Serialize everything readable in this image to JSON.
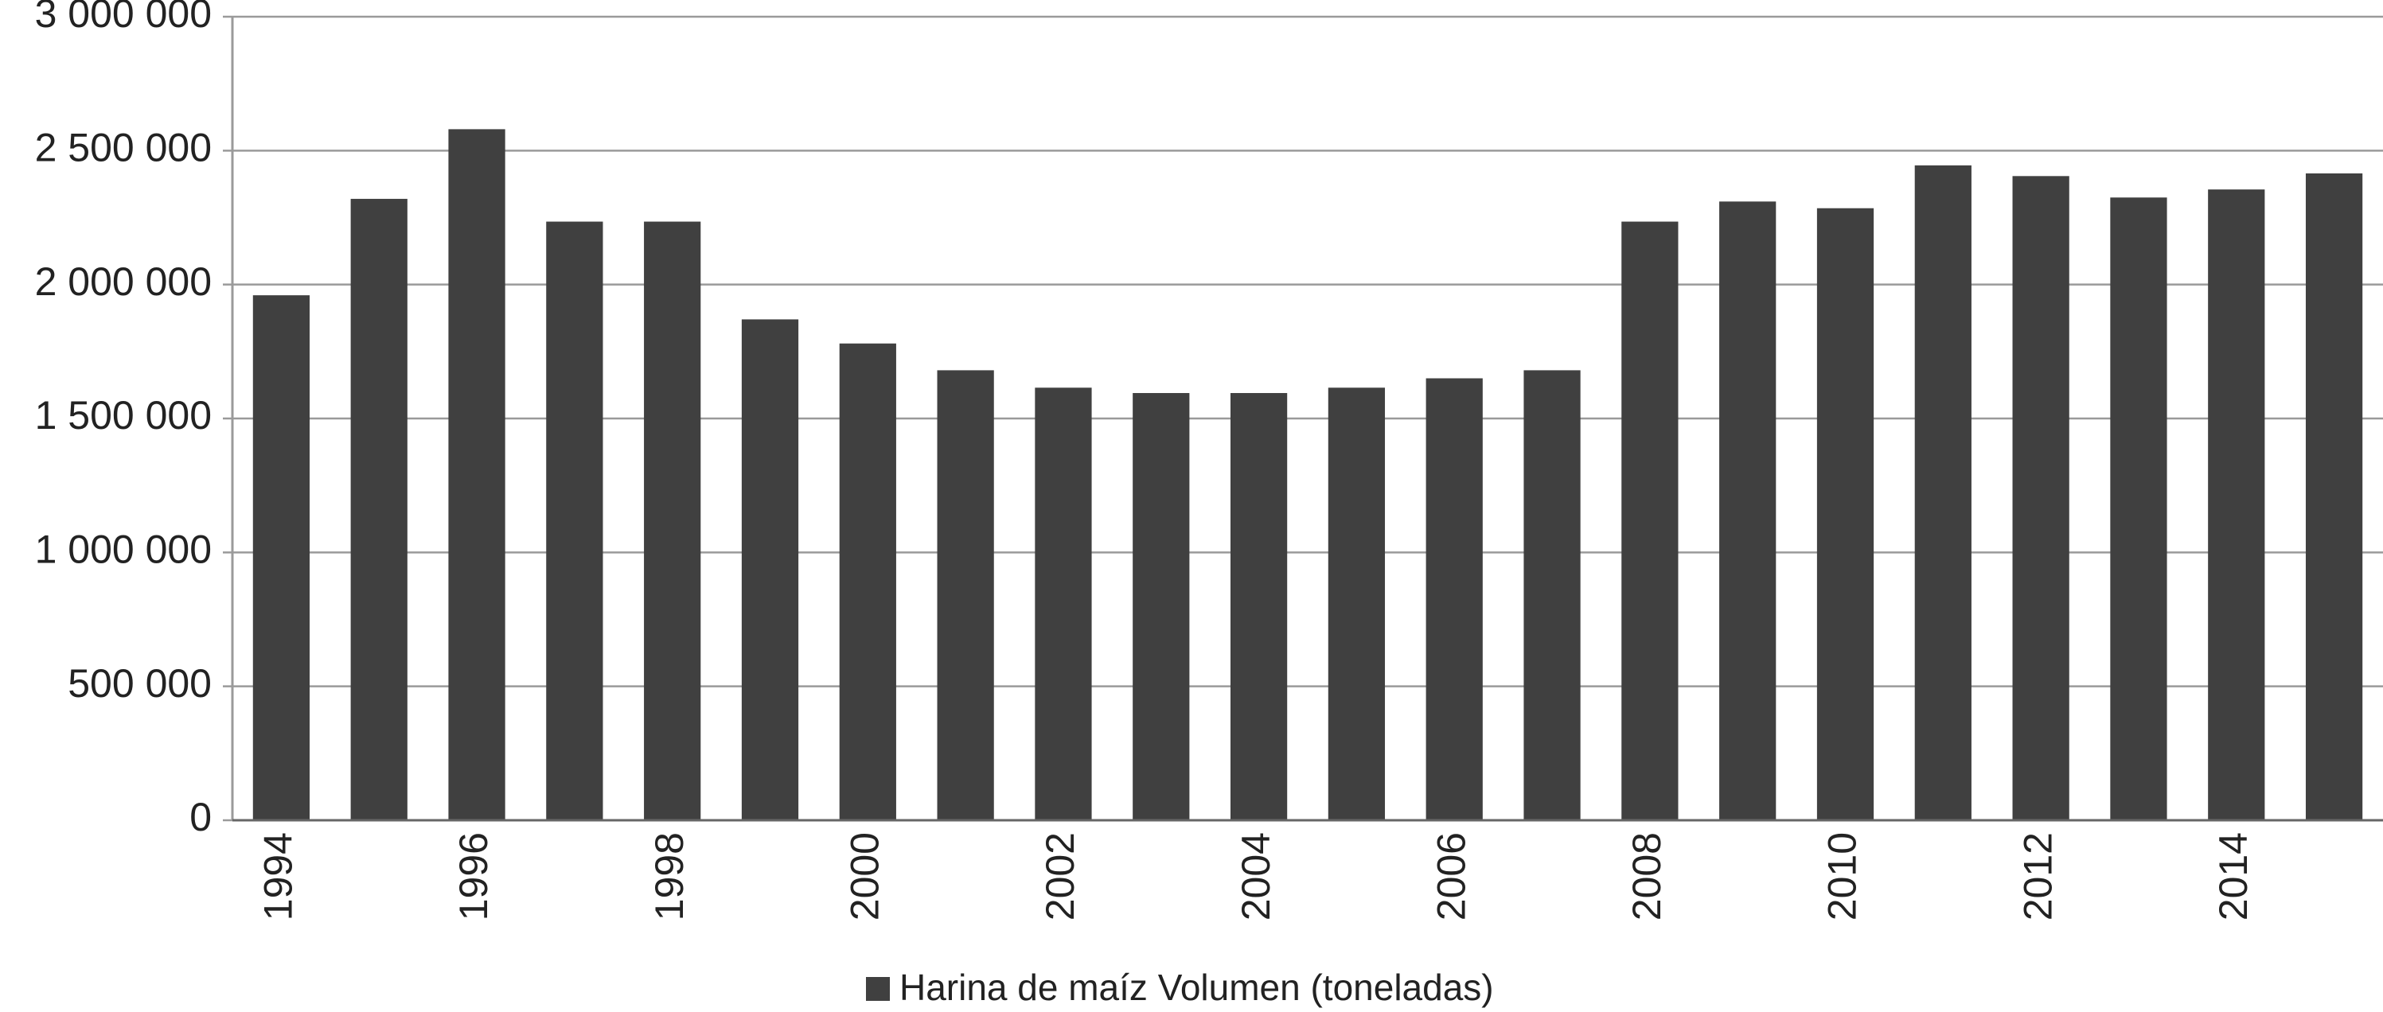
{
  "chart_data": {
    "type": "bar",
    "categories": [
      "1994",
      null,
      "1996",
      null,
      "1998",
      null,
      "2000",
      null,
      "2002",
      null,
      "2004",
      null,
      "2006",
      null,
      "2008",
      null,
      "2010",
      null,
      "2012",
      null,
      "2014",
      null
    ],
    "series": [
      {
        "name": "Harina de maíz Volumen (toneladas)",
        "color": "#404040",
        "values": [
          1960000,
          2320000,
          2580000,
          2235000,
          2235000,
          1870000,
          1780000,
          1680000,
          1615000,
          1595000,
          1595000,
          1615000,
          1650000,
          1680000,
          2235000,
          2310000,
          2285000,
          2445000,
          2405000,
          2325000,
          2355000,
          2415000
        ]
      }
    ],
    "ylim": [
      0,
      3000000
    ],
    "yticks": [
      0,
      {
        "value": 500000,
        "label": "500 000"
      },
      {
        "value": 1000000,
        "label": "1 000 000"
      },
      {
        "value": 1500000,
        "label": "1 500 000"
      },
      {
        "value": 2000000,
        "label": "2 000 000"
      },
      {
        "value": 2500000,
        "label": "2 500 000"
      },
      {
        "value": 3000000,
        "label": "3 000 000"
      }
    ],
    "grid": true,
    "legend": "bottom"
  }
}
